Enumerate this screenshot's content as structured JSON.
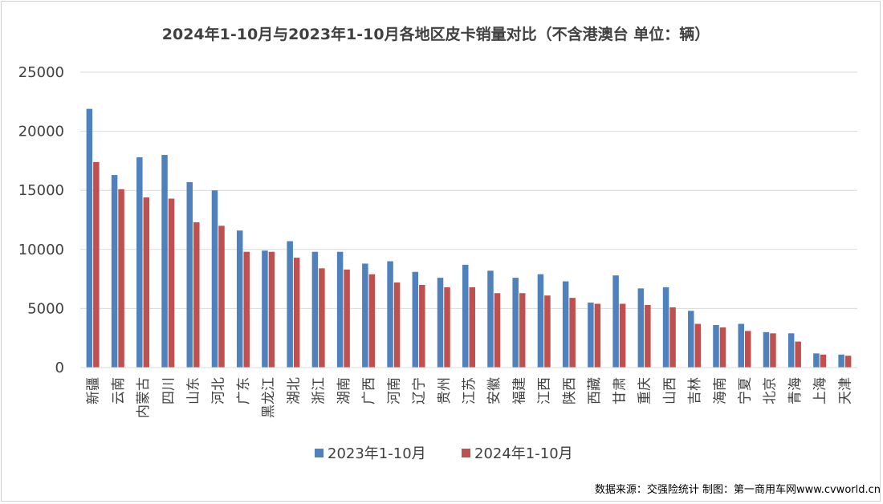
{
  "chart_data": {
    "type": "bar",
    "title": "2024年1-10月与2023年1-10月各地区皮卡销量对比（不含港澳台 单位：辆）",
    "categories": [
      "新疆",
      "云南",
      "内蒙古",
      "四川",
      "山东",
      "河北",
      "广东",
      "黑龙江",
      "湖北",
      "浙江",
      "湖南",
      "广西",
      "河南",
      "辽宁",
      "贵州",
      "江苏",
      "安徽",
      "福建",
      "江西",
      "陕西",
      "西藏",
      "甘肃",
      "重庆",
      "山西",
      "吉林",
      "海南",
      "宁夏",
      "北京",
      "青海",
      "上海",
      "天津"
    ],
    "series": [
      {
        "name": "2023年1-10月",
        "color": "#4f81bd",
        "values": [
          21900,
          16300,
          17800,
          18000,
          15700,
          15000,
          11600,
          9900,
          10700,
          9800,
          9800,
          8800,
          9000,
          8100,
          7600,
          8700,
          8200,
          7600,
          7900,
          7300,
          5500,
          7800,
          6700,
          6800,
          4800,
          3600,
          3700,
          3000,
          2900,
          1200,
          1100
        ]
      },
      {
        "name": "2024年1-10月",
        "color": "#c0504d",
        "values": [
          17400,
          15100,
          14400,
          14300,
          12300,
          12000,
          9800,
          9800,
          9300,
          8400,
          8300,
          7900,
          7200,
          7000,
          6800,
          6800,
          6300,
          6300,
          6100,
          5900,
          5400,
          5400,
          5300,
          5100,
          3700,
          3400,
          3100,
          2900,
          2200,
          1100,
          1000
        ]
      }
    ],
    "ylim": [
      0,
      25000
    ],
    "yticks": [
      0,
      5000,
      10000,
      15000,
      20000,
      25000
    ],
    "grid": true,
    "legend_position": "bottom"
  },
  "source_note": "数据来源：交强险统计 制图：第一商用车网www.cvworld.cn"
}
